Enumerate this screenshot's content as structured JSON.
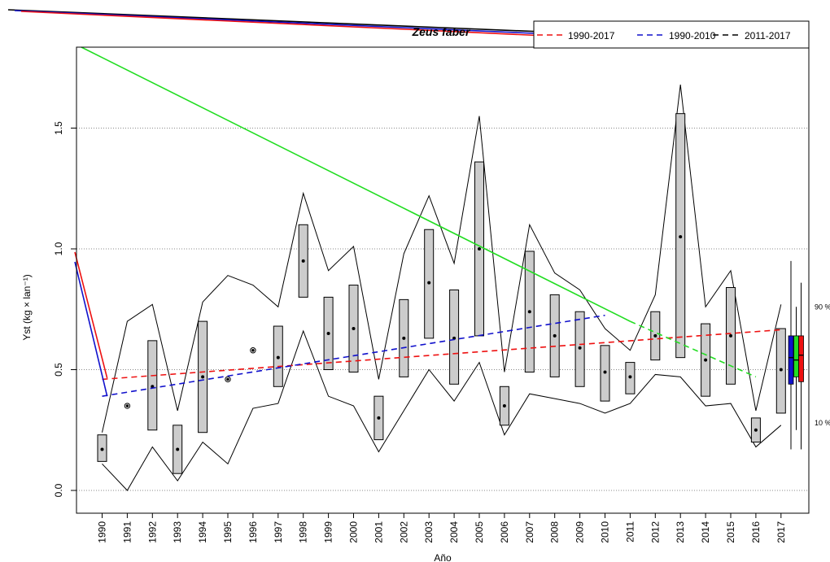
{
  "chart_data": {
    "type": "boxplot",
    "title": "Zeus faber",
    "xlabel": "Año",
    "ylabel": "Yst (kg × lan⁻¹)",
    "ylim": [
      -0.1,
      1.85
    ],
    "yticks": [
      0.0,
      0.5,
      1.0,
      1.5
    ],
    "grid_y": true,
    "categories": [
      "1990",
      "1991",
      "1992",
      "1993",
      "1994",
      "1995",
      "1996",
      "1997",
      "1998",
      "1999",
      "2000",
      "2001",
      "2002",
      "2003",
      "2004",
      "2005",
      "2006",
      "2007",
      "2008",
      "2009",
      "2010",
      "2011",
      "2012",
      "2013",
      "2014",
      "2015",
      "2016",
      "2017"
    ],
    "boxes": [
      {
        "q1": 0.12,
        "q3": 0.23,
        "med": 0.17
      },
      {
        "q1": null,
        "q3": null,
        "med": 0.35
      },
      {
        "q1": 0.25,
        "q3": 0.62,
        "med": 0.43
      },
      {
        "q1": 0.07,
        "q3": 0.27,
        "med": 0.17
      },
      {
        "q1": 0.24,
        "q3": 0.7,
        "med": 0.47
      },
      {
        "q1": null,
        "q3": null,
        "med": 0.46
      },
      {
        "q1": null,
        "q3": null,
        "med": 0.58
      },
      {
        "q1": 0.43,
        "q3": 0.68,
        "med": 0.55
      },
      {
        "q1": 0.8,
        "q3": 1.1,
        "med": 0.95
      },
      {
        "q1": 0.5,
        "q3": 0.8,
        "med": 0.65
      },
      {
        "q1": 0.49,
        "q3": 0.85,
        "med": 0.67
      },
      {
        "q1": 0.21,
        "q3": 0.39,
        "med": 0.3
      },
      {
        "q1": 0.47,
        "q3": 0.79,
        "med": 0.63
      },
      {
        "q1": 0.63,
        "q3": 1.08,
        "med": 0.86
      },
      {
        "q1": 0.44,
        "q3": 0.83,
        "med": 0.63
      },
      {
        "q1": 0.64,
        "q3": 1.36,
        "med": 1.0
      },
      {
        "q1": 0.27,
        "q3": 0.43,
        "med": 0.35
      },
      {
        "q1": 0.49,
        "q3": 0.99,
        "med": 0.74
      },
      {
        "q1": 0.47,
        "q3": 0.81,
        "med": 0.64
      },
      {
        "q1": 0.43,
        "q3": 0.74,
        "med": 0.59
      },
      {
        "q1": 0.37,
        "q3": 0.6,
        "med": 0.49
      },
      {
        "q1": 0.4,
        "q3": 0.53,
        "med": 0.47
      },
      {
        "q1": 0.54,
        "q3": 0.74,
        "med": 0.64
      },
      {
        "q1": 0.55,
        "q3": 1.56,
        "med": 1.05
      },
      {
        "q1": 0.39,
        "q3": 0.69,
        "med": 0.54
      },
      {
        "q1": 0.44,
        "q3": 0.84,
        "med": 0.64
      },
      {
        "q1": 0.2,
        "q3": 0.3,
        "med": 0.25
      },
      {
        "q1": 0.32,
        "q3": 0.67,
        "med": 0.5
      }
    ],
    "upper_envelope": [
      0.24,
      0.7,
      0.77,
      0.33,
      0.78,
      0.89,
      0.85,
      0.76,
      1.23,
      0.91,
      1.01,
      0.46,
      0.98,
      1.22,
      0.94,
      1.55,
      0.49,
      1.1,
      0.9,
      0.83,
      0.67,
      0.58,
      0.81,
      1.68,
      0.76,
      0.91,
      0.33,
      0.77
    ],
    "lower_envelope": [
      0.11,
      0.0,
      0.18,
      0.04,
      0.2,
      0.11,
      0.34,
      0.36,
      0.66,
      0.39,
      0.35,
      0.16,
      0.33,
      0.5,
      0.37,
      0.53,
      0.23,
      0.4,
      0.38,
      0.36,
      0.32,
      0.36,
      0.48,
      0.47,
      0.35,
      0.36,
      0.18,
      0.27
    ],
    "series": [
      {
        "name": "1990-2017",
        "color": "#ee1111",
        "style": "dashed",
        "x": [
          1990,
          2017
        ],
        "y": [
          0.46,
          0.665
        ]
      },
      {
        "name": "1990-2010",
        "color": "#1111cc",
        "style": "dashed",
        "x": [
          1990,
          2010
        ],
        "y": [
          0.39,
          0.725
        ]
      },
      {
        "name": "2011-2017",
        "color": "#22dd22",
        "style": "dashed",
        "x": [
          2011,
          2016
        ],
        "y": [
          0.7,
          0.47
        ]
      }
    ],
    "summary_boxes": [
      {
        "color": "#1111cc",
        "q1": 0.44,
        "q3": 0.64,
        "med": 0.55,
        "whisker_low": 0.17,
        "whisker_high": 0.95
      },
      {
        "color": "#22dd22",
        "q1": 0.47,
        "q3": 0.64,
        "med": 0.54,
        "whisker_low": 0.25,
        "whisker_high": 0.76
      },
      {
        "color": "#ee1111",
        "q1": 0.45,
        "q3": 0.64,
        "med": 0.56,
        "whisker_low": 0.17,
        "whisker_high": 0.86
      }
    ],
    "percentile_labels": [
      {
        "label": "90 %",
        "value": 0.76
      },
      {
        "label": "10 %",
        "value": 0.28
      }
    ]
  }
}
